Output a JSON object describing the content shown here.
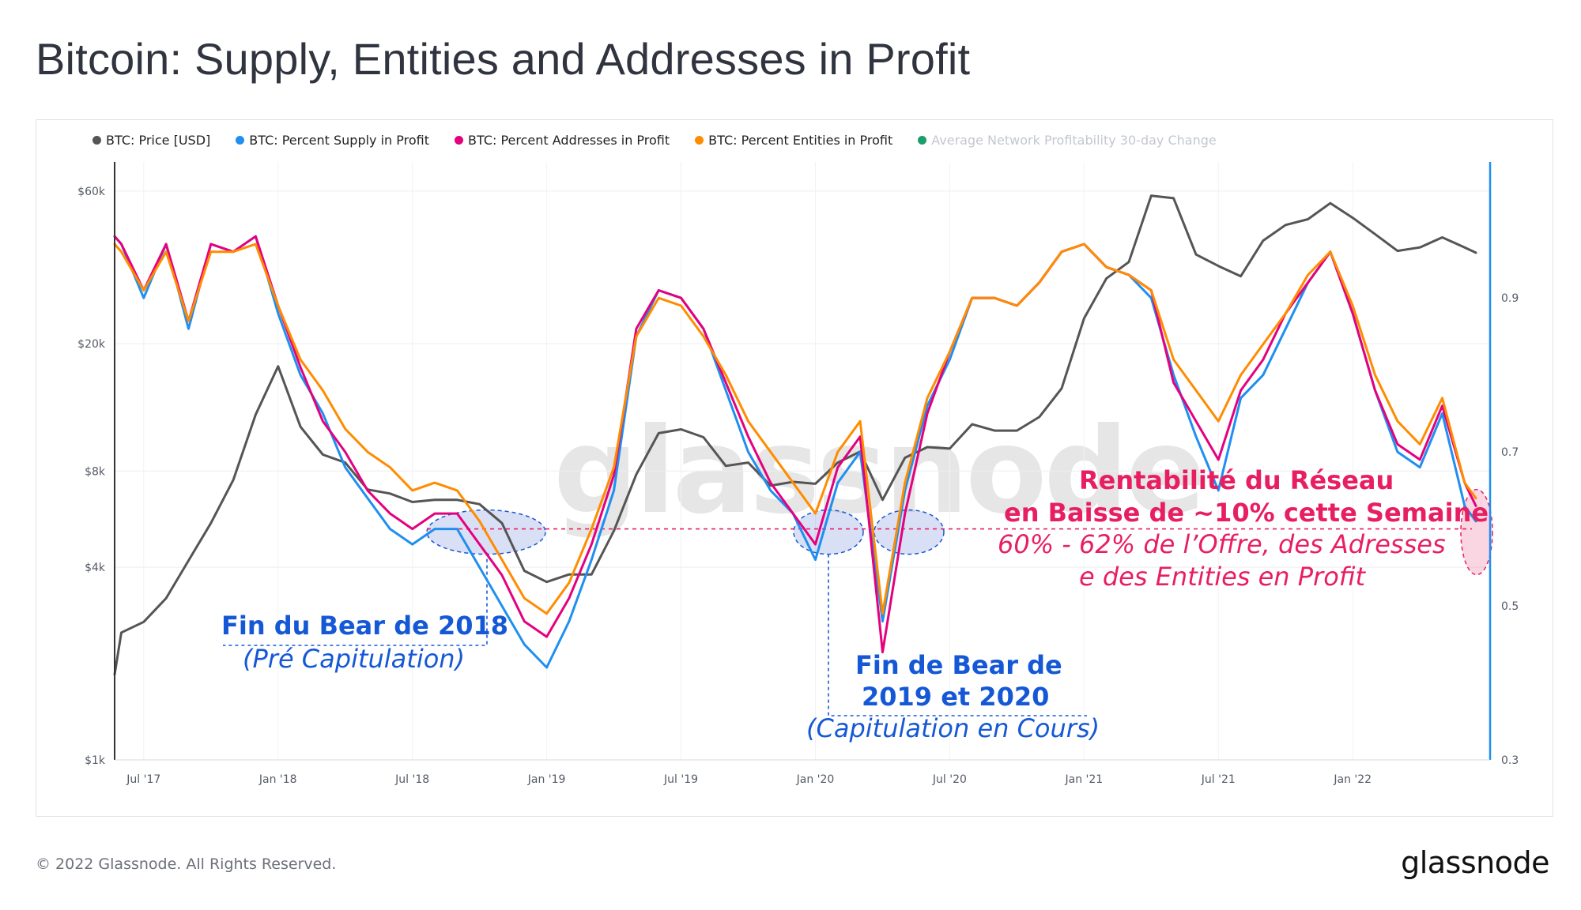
{
  "title": "Bitcoin: Supply, Entities and Addresses in Profit",
  "legend": [
    {
      "label": "BTC: Price [USD]",
      "color": "#555555"
    },
    {
      "label": "BTC: Percent Supply in Profit",
      "color": "#1f8ff0"
    },
    {
      "label": "BTC: Percent Addresses in Profit",
      "color": "#e5007e"
    },
    {
      "label": "BTC: Percent Entities in Profit",
      "color": "#ff8c00"
    },
    {
      "label": "Average Network Profitability 30-day Change",
      "color": "#1a9e6a",
      "muted": true
    }
  ],
  "watermark": "glassnode",
  "annotations": {
    "bear2018_title": "Fin du Bear de 2018",
    "bear2018_sub": "(Pré Capitulation)",
    "bear1920_title_1": "Fin de Bear de",
    "bear1920_title_2": "2019 et 2020",
    "bear1920_sub": "(Capitulation en Cours)",
    "network_title_1": "Rentabilité du Réseau",
    "network_title_2": "en Baisse de ~10% cette Semaine",
    "network_sub_1": "60% - 62% de l’Offre, des Adresses",
    "network_sub_2": "e des Entities en Profit"
  },
  "footer": {
    "copyright": "© 2022 Glassnode. All Rights Reserved.",
    "logo": "glassnode"
  },
  "colors": {
    "price": "#555555",
    "supply": "#1f8ff0",
    "addresses": "#e5007e",
    "entities": "#ff8c00",
    "annotation_blue": "#1558d6",
    "annotation_red": "#e81e63",
    "right_axis": "#1f8ff0"
  },
  "chart_data": {
    "type": "line",
    "x_ticks": [
      "Jul '17",
      "Jan '18",
      "Jul '18",
      "Jan '19",
      "Jul '19",
      "Jan '20",
      "Jul '20",
      "Jan '21",
      "Jul '21",
      "Jan '22"
    ],
    "x_tick_pos": [
      3,
      9,
      15,
      21,
      27,
      33,
      39,
      45,
      51,
      57
    ],
    "x_range": [
      1.7,
      62.5
    ],
    "y_left": {
      "label": "",
      "scale": "log",
      "ticks": [
        "$1k",
        "$4k",
        "$8k",
        "$20k",
        "$60k"
      ],
      "tick_values": [
        1000,
        4000,
        8000,
        20000,
        60000
      ],
      "range": [
        1000,
        100000
      ]
    },
    "y_right": {
      "label": "",
      "scale": "linear",
      "ticks": [
        "0.3",
        "0.5",
        "0.7",
        "0.9"
      ],
      "tick_values": [
        0.3,
        0.5,
        0.7,
        0.9
      ],
      "range": [
        0.3,
        1.1
      ]
    },
    "reference_line": 0.6,
    "series": [
      {
        "name": "BTC: Price [USD]",
        "axis": "left",
        "color": "#555555",
        "x": [
          1.7,
          2,
          3,
          4,
          5,
          6,
          7,
          8,
          9,
          10,
          11,
          12,
          13,
          14,
          15,
          16,
          17,
          18,
          19,
          20,
          21,
          22,
          23,
          24,
          25,
          26,
          27,
          28,
          29,
          30,
          31,
          32,
          33,
          34,
          35,
          36,
          37,
          38,
          39,
          40,
          41,
          42,
          43,
          44,
          45,
          46,
          47,
          48,
          49,
          50,
          51,
          52,
          53,
          54,
          55,
          56,
          57,
          58,
          59,
          60,
          61,
          62,
          62.5
        ],
        "values": [
          1850,
          2500,
          2700,
          3200,
          4200,
          5500,
          7500,
          12000,
          17000,
          11000,
          9000,
          8500,
          7000,
          6800,
          6400,
          6500,
          6500,
          6300,
          5500,
          3900,
          3600,
          3800,
          3800,
          5200,
          7800,
          10500,
          10800,
          10200,
          8300,
          8500,
          7200,
          7400,
          7300,
          8500,
          9200,
          6500,
          8800,
          9500,
          9400,
          11200,
          10700,
          10700,
          11800,
          14500,
          24000,
          32000,
          36000,
          58000,
          57000,
          38000,
          35000,
          32500,
          42000,
          47000,
          49000,
          55000,
          49500,
          44000,
          39000,
          40000,
          43000,
          40000,
          38500
        ]
      },
      {
        "name": "BTC: Percent Supply in Profit",
        "axis": "right",
        "color": "#1f8ff0",
        "x": [
          1.7,
          2,
          3,
          4,
          5,
          6,
          7,
          8,
          9,
          10,
          11,
          12,
          13,
          14,
          15,
          16,
          17,
          18,
          19,
          20,
          21,
          22,
          23,
          24,
          25,
          26,
          27,
          28,
          29,
          30,
          31,
          32,
          33,
          34,
          35,
          36,
          37,
          38,
          39,
          40,
          41,
          42,
          43,
          44,
          45,
          46,
          47,
          48,
          49,
          50,
          51,
          52,
          53,
          54,
          55,
          56,
          57,
          58,
          59,
          60,
          61,
          62,
          62.5
        ],
        "values": [
          0.98,
          0.97,
          0.9,
          0.97,
          0.86,
          0.97,
          0.96,
          0.98,
          0.88,
          0.8,
          0.75,
          0.68,
          0.64,
          0.6,
          0.58,
          0.6,
          0.6,
          0.55,
          0.5,
          0.45,
          0.42,
          0.48,
          0.56,
          0.65,
          0.85,
          0.91,
          0.9,
          0.86,
          0.78,
          0.7,
          0.65,
          0.62,
          0.56,
          0.66,
          0.7,
          0.48,
          0.65,
          0.76,
          0.82,
          0.9,
          0.9,
          0.89,
          0.92,
          0.96,
          0.97,
          0.94,
          0.93,
          0.9,
          0.8,
          0.72,
          0.65,
          0.77,
          0.8,
          0.86,
          0.92,
          0.96,
          0.88,
          0.78,
          0.7,
          0.68,
          0.75,
          0.63,
          0.61
        ]
      },
      {
        "name": "BTC: Percent Addresses in Profit",
        "axis": "right",
        "color": "#e5007e",
        "x": [
          1.7,
          2,
          3,
          4,
          5,
          6,
          7,
          8,
          9,
          10,
          11,
          12,
          13,
          14,
          15,
          16,
          17,
          18,
          19,
          20,
          21,
          22,
          23,
          24,
          25,
          26,
          27,
          28,
          29,
          30,
          31,
          32,
          33,
          34,
          35,
          36,
          37,
          38,
          39,
          40,
          41,
          42,
          43,
          44,
          45,
          46,
          47,
          48,
          49,
          50,
          51,
          52,
          53,
          54,
          55,
          56,
          57,
          58,
          59,
          60,
          61,
          62,
          62.5
        ],
        "values": [
          0.98,
          0.97,
          0.91,
          0.97,
          0.87,
          0.97,
          0.96,
          0.98,
          0.89,
          0.81,
          0.74,
          0.7,
          0.65,
          0.62,
          0.6,
          0.62,
          0.62,
          0.58,
          0.54,
          0.48,
          0.46,
          0.51,
          0.58,
          0.67,
          0.86,
          0.91,
          0.9,
          0.86,
          0.79,
          0.72,
          0.66,
          0.62,
          0.58,
          0.68,
          0.72,
          0.44,
          0.62,
          0.75,
          0.83,
          0.9,
          0.9,
          0.89,
          0.92,
          0.96,
          0.97,
          0.94,
          0.93,
          0.91,
          0.79,
          0.74,
          0.69,
          0.78,
          0.82,
          0.88,
          0.92,
          0.96,
          0.88,
          0.78,
          0.71,
          0.69,
          0.76,
          0.66,
          0.63
        ]
      },
      {
        "name": "BTC: Percent Entities in Profit",
        "axis": "right",
        "color": "#ff8c00",
        "x": [
          1.7,
          2,
          3,
          4,
          5,
          6,
          7,
          8,
          9,
          10,
          11,
          12,
          13,
          14,
          15,
          16,
          17,
          18,
          19,
          20,
          21,
          22,
          23,
          24,
          25,
          26,
          27,
          28,
          29,
          30,
          31,
          32,
          33,
          34,
          35,
          36,
          37,
          38,
          39,
          40,
          41,
          42,
          43,
          44,
          45,
          46,
          47,
          48,
          49,
          50,
          51,
          52,
          53,
          54,
          55,
          56,
          57,
          58,
          59,
          60,
          61,
          62,
          62.5
        ],
        "values": [
          0.97,
          0.96,
          0.91,
          0.96,
          0.87,
          0.96,
          0.96,
          0.97,
          0.89,
          0.82,
          0.78,
          0.73,
          0.7,
          0.68,
          0.65,
          0.66,
          0.65,
          0.61,
          0.56,
          0.51,
          0.49,
          0.53,
          0.6,
          0.68,
          0.85,
          0.9,
          0.89,
          0.85,
          0.8,
          0.74,
          0.7,
          0.66,
          0.62,
          0.7,
          0.74,
          0.49,
          0.66,
          0.77,
          0.83,
          0.9,
          0.9,
          0.89,
          0.92,
          0.96,
          0.97,
          0.94,
          0.93,
          0.91,
          0.82,
          0.78,
          0.74,
          0.8,
          0.84,
          0.88,
          0.93,
          0.96,
          0.89,
          0.8,
          0.74,
          0.71,
          0.77,
          0.66,
          0.64
        ]
      }
    ]
  }
}
